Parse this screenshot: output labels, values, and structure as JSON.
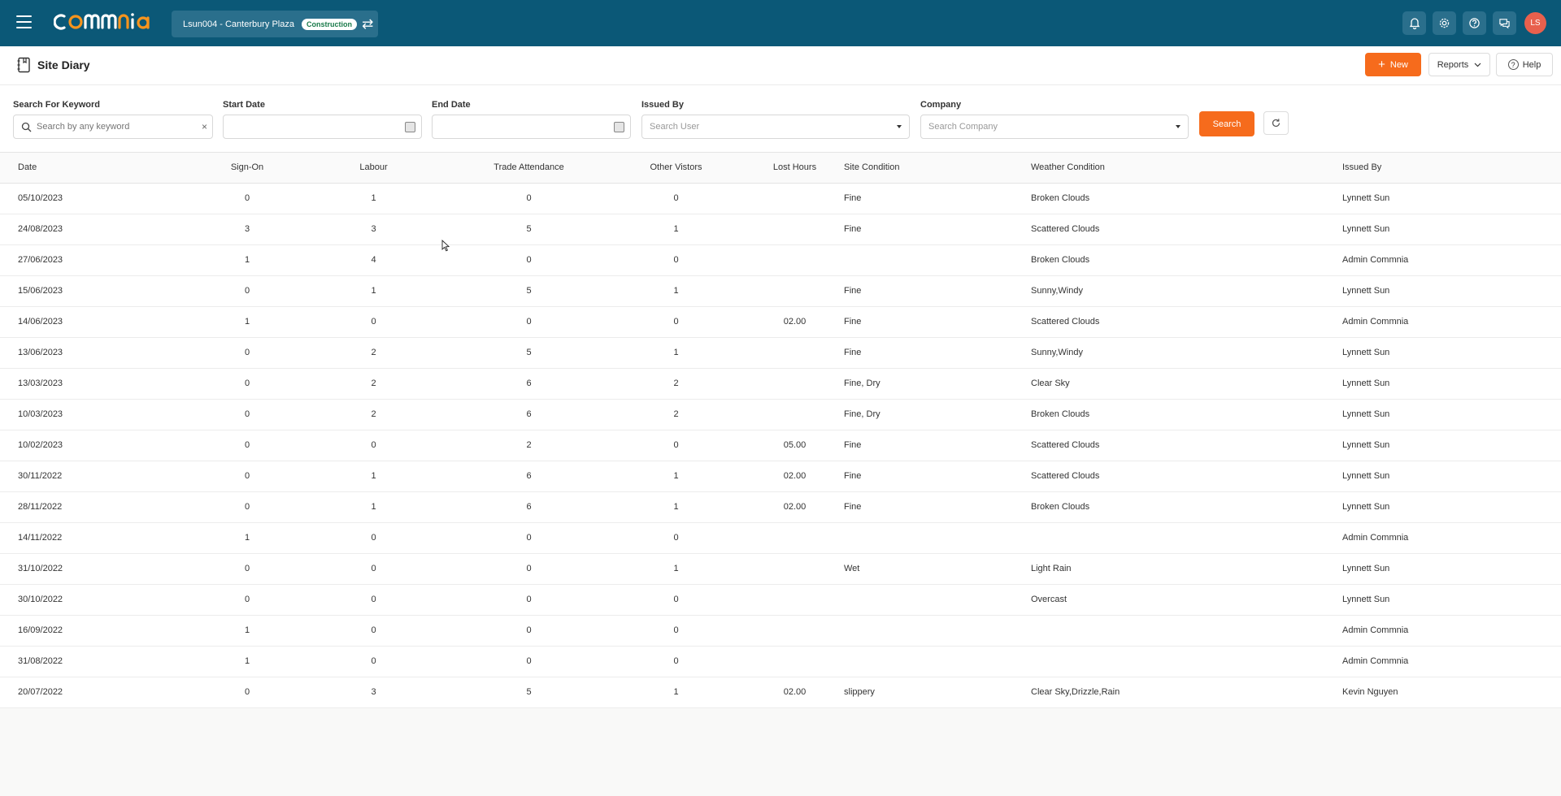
{
  "header": {
    "project_name": "Lsun004 - Canterbury Plaza",
    "project_badge": "Construction",
    "avatar_initials": "LS"
  },
  "page": {
    "title": "Site Diary",
    "new_label": "New",
    "reports_label": "Reports",
    "help_label": "Help"
  },
  "filters": {
    "keyword_label": "Search For Keyword",
    "keyword_placeholder": "Search by any keyword",
    "start_label": "Start Date",
    "end_label": "End Date",
    "issued_label": "Issued By",
    "issued_placeholder": "Search User",
    "company_label": "Company",
    "company_placeholder": "Search Company",
    "search_label": "Search"
  },
  "table": {
    "columns": [
      "Date",
      "Sign-On",
      "Labour",
      "Trade Attendance",
      "Other Vistors",
      "Lost Hours",
      "Site Condition",
      "Weather Condition",
      "Issued By"
    ],
    "rows": [
      [
        "05/10/2023",
        "0",
        "1",
        "0",
        "0",
        "",
        "Fine",
        "Broken Clouds",
        "Lynnett Sun"
      ],
      [
        "24/08/2023",
        "3",
        "3",
        "5",
        "1",
        "",
        "Fine",
        "Scattered Clouds",
        "Lynnett Sun"
      ],
      [
        "27/06/2023",
        "1",
        "4",
        "0",
        "0",
        "",
        "",
        "Broken Clouds",
        "Admin Commnia"
      ],
      [
        "15/06/2023",
        "0",
        "1",
        "5",
        "1",
        "",
        "Fine",
        "Sunny,Windy",
        "Lynnett Sun"
      ],
      [
        "14/06/2023",
        "1",
        "0",
        "0",
        "0",
        "02.00",
        "Fine",
        "Scattered Clouds",
        "Admin Commnia"
      ],
      [
        "13/06/2023",
        "0",
        "2",
        "5",
        "1",
        "",
        "Fine",
        "Sunny,Windy",
        "Lynnett Sun"
      ],
      [
        "13/03/2023",
        "0",
        "2",
        "6",
        "2",
        "",
        "Fine, Dry",
        "Clear Sky",
        "Lynnett Sun"
      ],
      [
        "10/03/2023",
        "0",
        "2",
        "6",
        "2",
        "",
        "Fine, Dry",
        "Broken Clouds",
        "Lynnett Sun"
      ],
      [
        "10/02/2023",
        "0",
        "0",
        "2",
        "0",
        "05.00",
        "Fine",
        "Scattered Clouds",
        "Lynnett Sun"
      ],
      [
        "30/11/2022",
        "0",
        "1",
        "6",
        "1",
        "02.00",
        "Fine",
        "Scattered Clouds",
        "Lynnett Sun"
      ],
      [
        "28/11/2022",
        "0",
        "1",
        "6",
        "1",
        "02.00",
        "Fine",
        "Broken Clouds",
        "Lynnett Sun"
      ],
      [
        "14/11/2022",
        "1",
        "0",
        "0",
        "0",
        "",
        "",
        "",
        "Admin Commnia"
      ],
      [
        "31/10/2022",
        "0",
        "0",
        "0",
        "1",
        "",
        "Wet",
        "Light Rain",
        "Lynnett Sun"
      ],
      [
        "30/10/2022",
        "0",
        "0",
        "0",
        "0",
        "",
        "",
        "Overcast",
        "Lynnett Sun"
      ],
      [
        "16/09/2022",
        "1",
        "0",
        "0",
        "0",
        "",
        "",
        "",
        "Admin Commnia"
      ],
      [
        "31/08/2022",
        "1",
        "0",
        "0",
        "0",
        "",
        "",
        "",
        "Admin Commnia"
      ],
      [
        "20/07/2022",
        "0",
        "3",
        "5",
        "1",
        "02.00",
        "slippery",
        "Clear Sky,Drizzle,Rain",
        "Kevin Nguyen"
      ]
    ]
  }
}
